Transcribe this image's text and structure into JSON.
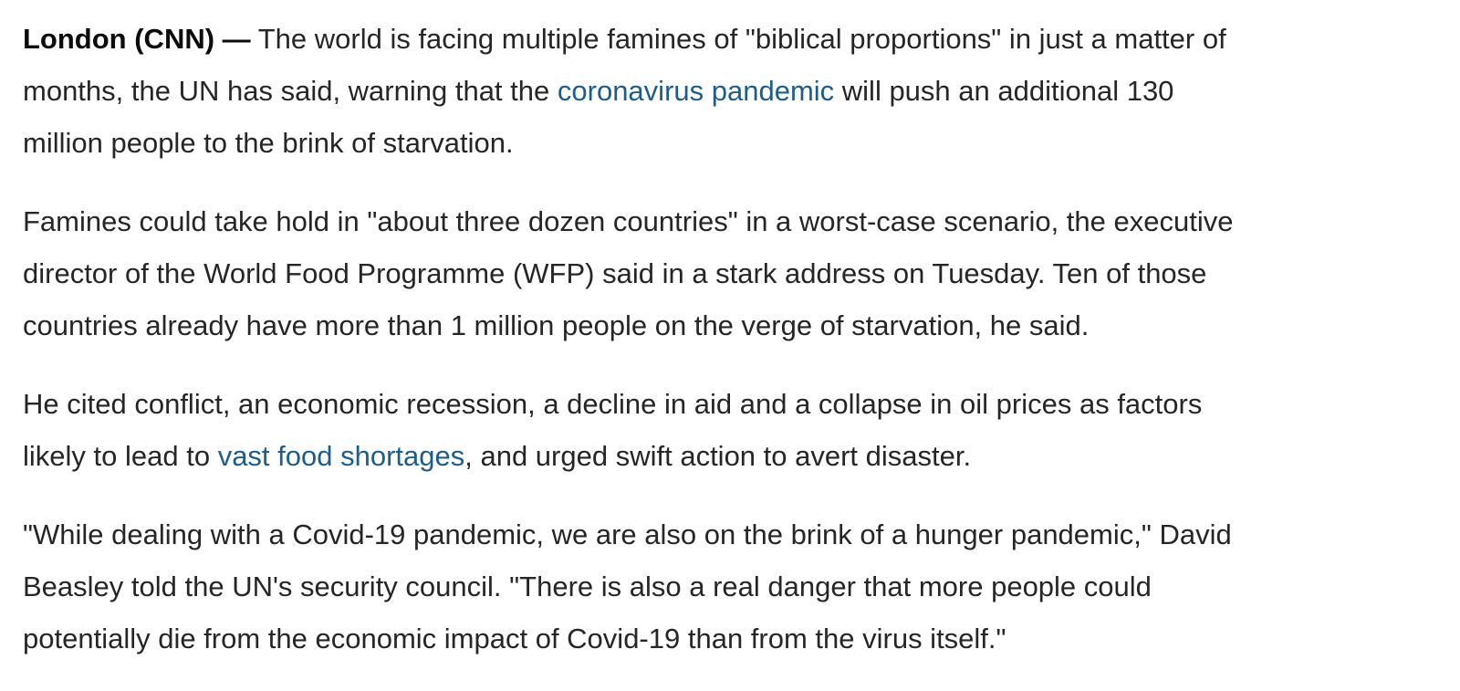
{
  "paragraphs": [
    {
      "lines": [
        [
          "London (CNN) —",
          "The world is facing multiple famines of \"biblical proportions\" in just a matter of"
        ],
        [
          "months, the UN has said, warning that the",
          "coronavirus pandemic",
          "will push an additional 130"
        ],
        [
          "million people to the brink of starvation."
        ]
      ]
    },
    {
      "lines": [
        [
          "Famines could take hold in \"about three dozen countries\" in a worst-case scenario, the executive"
        ],
        [
          "director of the World Food Programme (WFP) said in a stark address on Tuesday. Ten of those"
        ],
        [
          "countries already have more than 1 million people on the verge of starvation, he said."
        ]
      ]
    },
    {
      "lines": [
        [
          "He cited conflict, an economic recession, a decline in aid and a collapse in oil prices as factors"
        ],
        [
          "likely to lead to",
          "vast food shortages",
          ", and urged swift action to avert disaster."
        ]
      ]
    },
    {
      "lines": [
        [
          "\"While dealing with a Covid-19 pandemic, we are also on the brink of a hunger pandemic,\" David"
        ],
        [
          "Beasley told the UN's security council. \"There is also a real danger that more people could"
        ],
        [
          "potentially die from the economic impact of Covid-19 than from the virus itself.\""
        ]
      ]
    }
  ]
}
